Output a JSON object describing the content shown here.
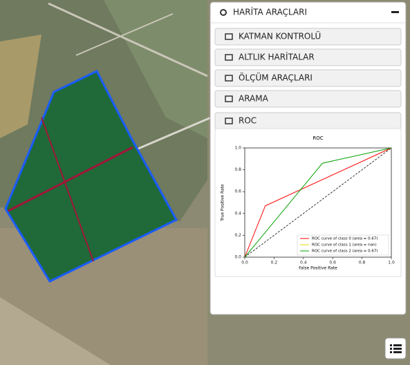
{
  "panel": {
    "title": "HARİTA ARAÇLARI",
    "menu": [
      "KATMAN KONTROLÜ",
      "ALTLIK HARİTALAR",
      "ÖLÇÜM ARAÇLARI",
      "ARAMA",
      "ROC"
    ]
  },
  "chart_data": {
    "type": "line",
    "title": "ROC",
    "x_label": "False Positive Rate",
    "y_label": "True Positive Rate",
    "xlim": [
      0,
      1
    ],
    "ylim": [
      0,
      1
    ],
    "xticks": [
      {
        "value": 0,
        "label": "0.0"
      },
      {
        "value": 0.2,
        "label": "0.2"
      },
      {
        "value": 0.4,
        "label": "0.4"
      },
      {
        "value": 0.6,
        "label": "0.6"
      },
      {
        "value": 0.8,
        "label": "0.8"
      },
      {
        "value": 1,
        "label": "1.0"
      }
    ],
    "yticks": [
      {
        "value": 0,
        "label": "0.0"
      },
      {
        "value": 0.2,
        "label": "0.2"
      },
      {
        "value": 0.4,
        "label": "0.4"
      },
      {
        "value": 0.6,
        "label": "0.6"
      },
      {
        "value": 0.8,
        "label": "0.8"
      },
      {
        "value": 1,
        "label": "1.0"
      }
    ],
    "legend": "lower right",
    "series": [
      {
        "name": "ROC curve of class 0 (area = 0.67)",
        "color": "#ff0000",
        "x": [
          0,
          0.14,
          1
        ],
        "values": [
          0,
          0.47,
          1
        ]
      },
      {
        "name": "ROC curve of class 1 (area = nan)",
        "color": "#e6d800",
        "x": [
          0,
          1
        ],
        "values": [
          null,
          null
        ]
      },
      {
        "name": "ROC curve of class 2 (area = 0.67)",
        "color": "#00a000",
        "x": [
          0,
          0.53,
          1
        ],
        "values": [
          0,
          0.86,
          1
        ]
      }
    ]
  }
}
